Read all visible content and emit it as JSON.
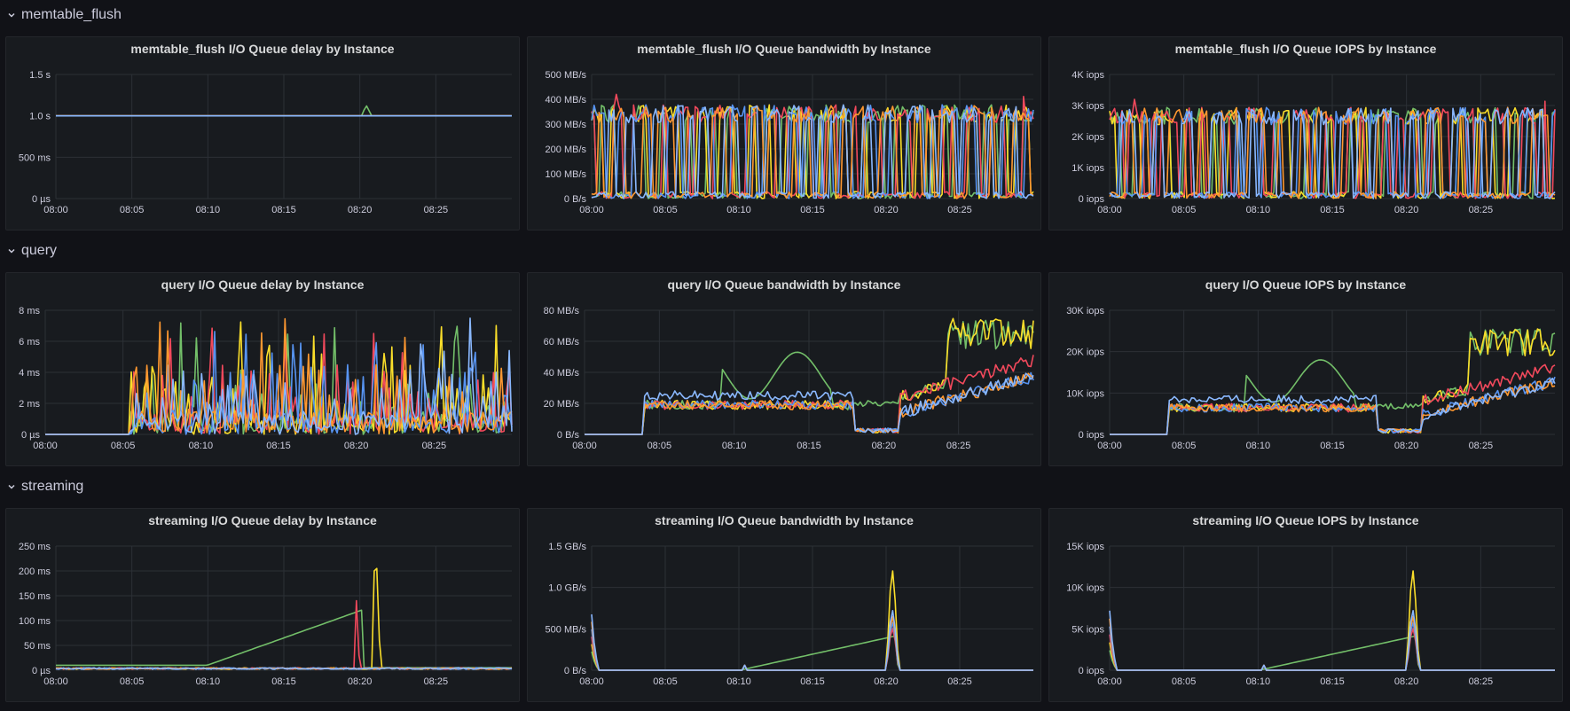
{
  "rows": [
    {
      "title": "memtable_flush"
    },
    {
      "title": "query"
    },
    {
      "title": "streaming"
    }
  ],
  "x_ticks": [
    "08:00",
    "08:05",
    "08:10",
    "08:15",
    "08:20",
    "08:25"
  ],
  "series_colors": [
    "#73bf69",
    "#fade2a",
    "#f2495c",
    "#5794f2",
    "#ff9830",
    "#8ab8ff",
    "#6ed0e0",
    "#3274d9",
    "#e0b400",
    "#e0752d"
  ],
  "panels": [
    {
      "title": "memtable_flush I/O Queue delay by Instance",
      "chart_data": {
        "type": "line",
        "kind": "delay_flat",
        "y_ticks": [
          "0 µs",
          "500 ms",
          "1.0 s",
          "1.5 s"
        ],
        "ylim": [
          0,
          1.5
        ],
        "level": 1.0,
        "spike_at": 0.68,
        "spike": 1.12
      }
    },
    {
      "title": "memtable_flush I/O Queue bandwidth by Instance",
      "chart_data": {
        "type": "line",
        "kind": "square",
        "y_ticks": [
          "0 B/s",
          "100 MB/s",
          "200 MB/s",
          "300 MB/s",
          "400 MB/s",
          "500 MB/s"
        ],
        "ylim": [
          0,
          500
        ],
        "hi": 360,
        "peak": 420
      }
    },
    {
      "title": "memtable_flush I/O Queue IOPS by Instance",
      "chart_data": {
        "type": "line",
        "kind": "square",
        "y_ticks": [
          "0 iops",
          "1K iops",
          "2K iops",
          "3K iops",
          "4K iops"
        ],
        "ylim": [
          0,
          4000
        ],
        "hi": 2800,
        "peak": 3200
      }
    },
    {
      "title": "query I/O Queue delay by Instance",
      "chart_data": {
        "type": "line",
        "kind": "spiky",
        "y_ticks": [
          "0 µs",
          "2 ms",
          "4 ms",
          "6 ms",
          "8 ms"
        ],
        "ylim": [
          0,
          8
        ]
      }
    },
    {
      "title": "query I/O Queue bandwidth by Instance",
      "chart_data": {
        "type": "line",
        "kind": "ramp",
        "y_ticks": [
          "0 B/s",
          "20 MB/s",
          "40 MB/s",
          "60 MB/s",
          "80 MB/s"
        ],
        "ylim": [
          0,
          80
        ],
        "scale": 1
      }
    },
    {
      "title": "query I/O Queue IOPS by Instance",
      "chart_data": {
        "type": "line",
        "kind": "ramp",
        "y_ticks": [
          "0 iops",
          "10K iops",
          "20K iops",
          "30K iops"
        ],
        "ylim": [
          0,
          30000
        ],
        "scale": 340
      }
    },
    {
      "title": "streaming I/O Queue delay by Instance",
      "chart_data": {
        "type": "line",
        "kind": "stream_delay",
        "y_ticks": [
          "0 µs",
          "50 ms",
          "100 ms",
          "150 ms",
          "200 ms",
          "250 ms"
        ],
        "ylim": [
          0,
          250
        ]
      }
    },
    {
      "title": "streaming I/O Queue bandwidth by Instance",
      "chart_data": {
        "type": "line",
        "kind": "stream_burst",
        "y_ticks": [
          "0 B/s",
          "500 MB/s",
          "1.0 GB/s",
          "1.5 GB/s"
        ],
        "ylim": [
          0,
          1500
        ],
        "peak": 1200,
        "start": 750,
        "green": 420
      }
    },
    {
      "title": "streaming I/O Queue IOPS by Instance",
      "chart_data": {
        "type": "line",
        "kind": "stream_burst",
        "y_ticks": [
          "0 iops",
          "5K iops",
          "10K iops",
          "15K iops"
        ],
        "ylim": [
          0,
          15000
        ],
        "peak": 12000,
        "start": 8000,
        "green": 4200
      }
    }
  ]
}
